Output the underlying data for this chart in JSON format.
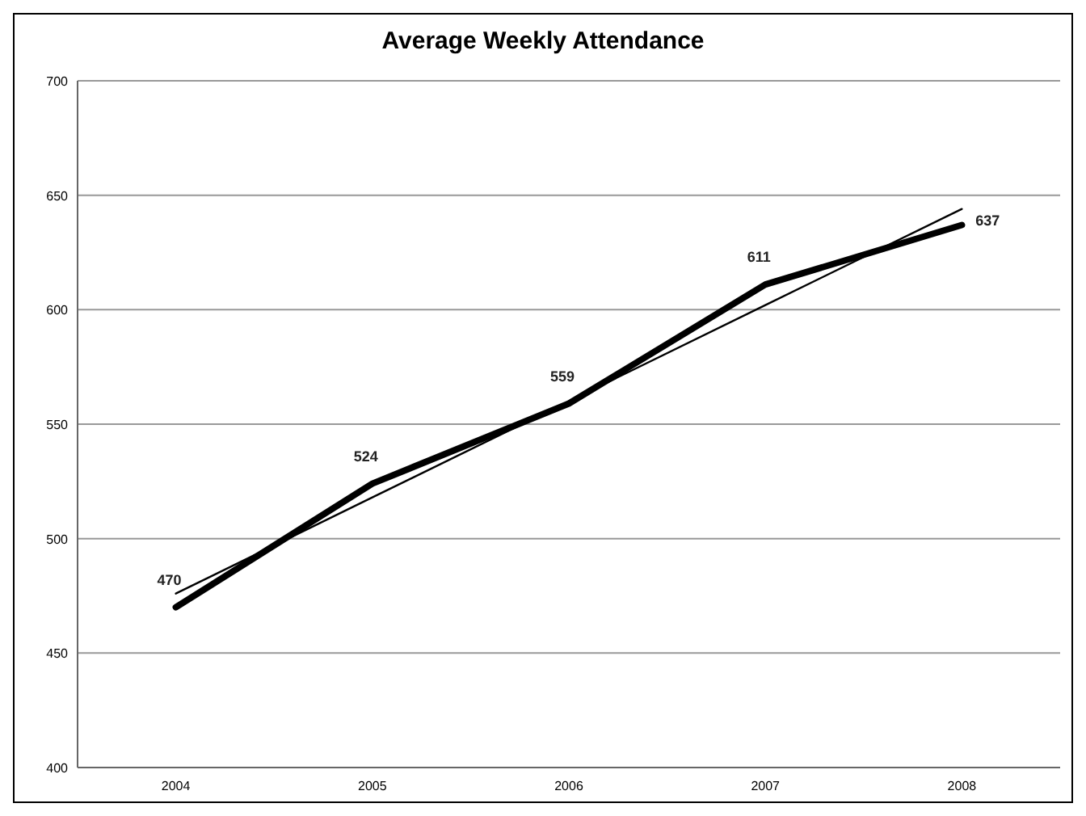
{
  "chart_data": {
    "type": "line",
    "title": "Average Weekly Attendance",
    "categories": [
      "2004",
      "2005",
      "2006",
      "2007",
      "2008"
    ],
    "series": [
      {
        "color": "#000000",
        "values": [
          470,
          524,
          559,
          611,
          637
        ],
        "value_labels": [
          "470",
          "524",
          "559",
          "611",
          "637"
        ]
      },
      {
        "type": "line",
        "color": "#000000",
        "values": [
          476,
          518,
          560,
          602,
          644
        ]
      }
    ],
    "ylim": [
      400,
      700
    ],
    "yticks": [
      400,
      450,
      500,
      550,
      600,
      650,
      700
    ],
    "grid": "y",
    "marker": "none",
    "line_style": "solid"
  }
}
